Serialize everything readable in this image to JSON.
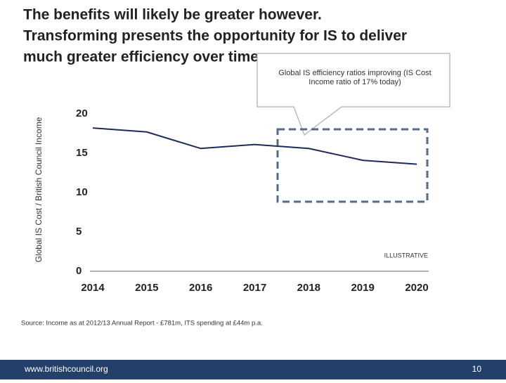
{
  "slide": {
    "title_lines": [
      "The benefits will likely be greater however.",
      "Transforming  presents the opportunity for IS to deliver",
      "much greater efficiency over time."
    ],
    "source": "Source: Income as at 2012/13 Annual Report - £781m, ITS spending at £44m p.a.",
    "footer_url": "www.britishcouncil.org",
    "page_number": "10"
  },
  "chart_data": {
    "type": "line",
    "y_label": "Global IS Cost / British Council Income",
    "annotation": "Global IS efficiency ratios improving (IS Cost Income ratio of 17% today)",
    "tag": "ILLUSTRATIVE",
    "categories": [
      "2014",
      "2015",
      "2016",
      "2017",
      "2018",
      "2019",
      "2020"
    ],
    "values": [
      18.2,
      17.7,
      15.6,
      16.1,
      15.6,
      14.1,
      13.6
    ],
    "color": "#1f2a5c",
    "ylim": [
      0,
      20
    ],
    "yticks": [
      0,
      5,
      10,
      15,
      20
    ],
    "grid": false
  }
}
